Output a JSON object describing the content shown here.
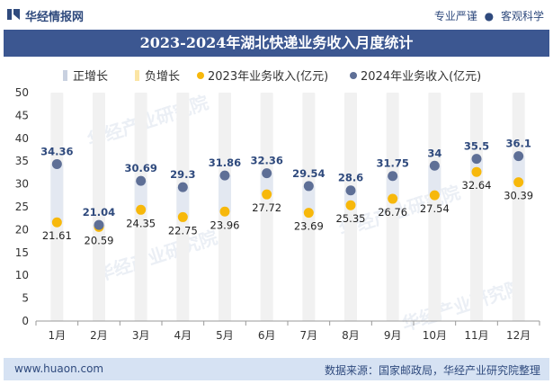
{
  "header": {
    "brand": "华经情报网",
    "tagline_left": "专业严谨",
    "tagline_dot": "●",
    "tagline_right": "客观科学"
  },
  "footer": {
    "site": "www.huaon.com",
    "source": "数据来源：国家邮政局，华经产业研究院整理"
  },
  "watermark": {
    "text": "华经产业研究院",
    "url": "www.huaon.com"
  },
  "colors": {
    "brand": "#2f4a7d",
    "title_bg": "#3c5791",
    "footer_bg": "#d6e2f3",
    "series_2023": "#f7b80b",
    "series_2024": "#5e6f96",
    "up_bar": "#e3e8f1",
    "down_bar": "#fdf0c8",
    "background_bar": "#f1f1f1"
  },
  "chart_data": {
    "type": "line",
    "title": "2023-2024年湖北快递业务收入月度统计",
    "categories": [
      "1月",
      "2月",
      "3月",
      "4月",
      "5月",
      "6月",
      "7月",
      "8月",
      "9月",
      "10月",
      "11月",
      "12月"
    ],
    "series": [
      {
        "name": "2023年业务收入(亿元)",
        "values": [
          21.61,
          20.59,
          24.35,
          22.75,
          23.96,
          27.72,
          23.69,
          25.35,
          26.76,
          27.54,
          32.64,
          30.39
        ]
      },
      {
        "name": "2024年业务收入(亿元)",
        "values": [
          34.36,
          21.04,
          30.69,
          29.3,
          31.86,
          32.36,
          29.54,
          28.6,
          31.75,
          34,
          35.5,
          36.1
        ]
      }
    ],
    "legend": [
      "正增长",
      "负增长",
      "2023年业务收入(亿元)",
      "2024年业务收入(亿元)"
    ],
    "legend_position": "top",
    "ylim": [
      0,
      50
    ],
    "yticks": [
      0,
      5,
      10,
      15,
      20,
      25,
      30,
      35,
      40,
      45,
      50
    ],
    "xlabel": "",
    "ylabel": ""
  }
}
